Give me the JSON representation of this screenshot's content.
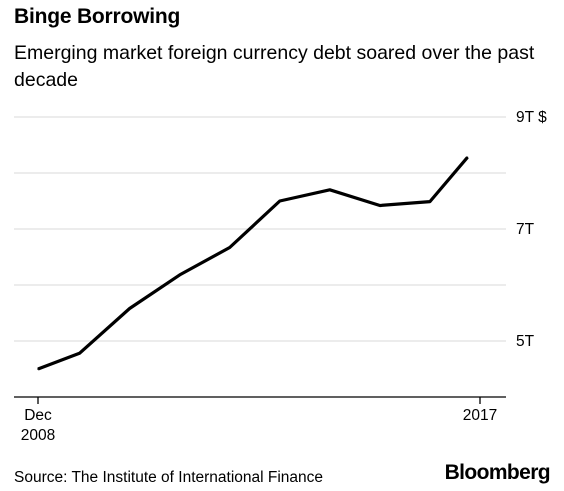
{
  "header": {
    "title": "Binge Borrowing",
    "subtitle": "Emerging market foreign currency debt soared over the past decade"
  },
  "footer": {
    "source": "Source: The Institute of International Finance",
    "logo": "Bloomberg"
  },
  "chart_data": {
    "type": "line",
    "title": "Binge Borrowing",
    "subtitle": "Emerging market foreign currency debt soared over the past decade",
    "xlabel": "",
    "ylabel": "",
    "ylim": [
      4.0,
      9.0
    ],
    "y_ticks": [
      5,
      6,
      7,
      8,
      9
    ],
    "y_tick_labels": [
      "5T",
      "",
      "7T",
      "",
      "9T $"
    ],
    "x_range": [
      2008.92,
      2017.75
    ],
    "x_tick_values": [
      2008.92,
      2017.75
    ],
    "x_tick_labels": [
      [
        "Dec",
        "2008"
      ],
      [
        "2017"
      ]
    ],
    "grid": true,
    "line_color": "#000000",
    "grid_color": "#d9d9d9",
    "series": [
      {
        "x": [
          2008.92,
          2009.75,
          2010.75,
          2011.75,
          2012.75,
          2013.75,
          2014.75,
          2015.75,
          2016.75,
          2017.5
        ],
        "values": [
          4.5,
          4.78,
          5.58,
          6.18,
          6.67,
          7.5,
          7.7,
          7.42,
          7.49,
          8.28
        ]
      }
    ]
  }
}
